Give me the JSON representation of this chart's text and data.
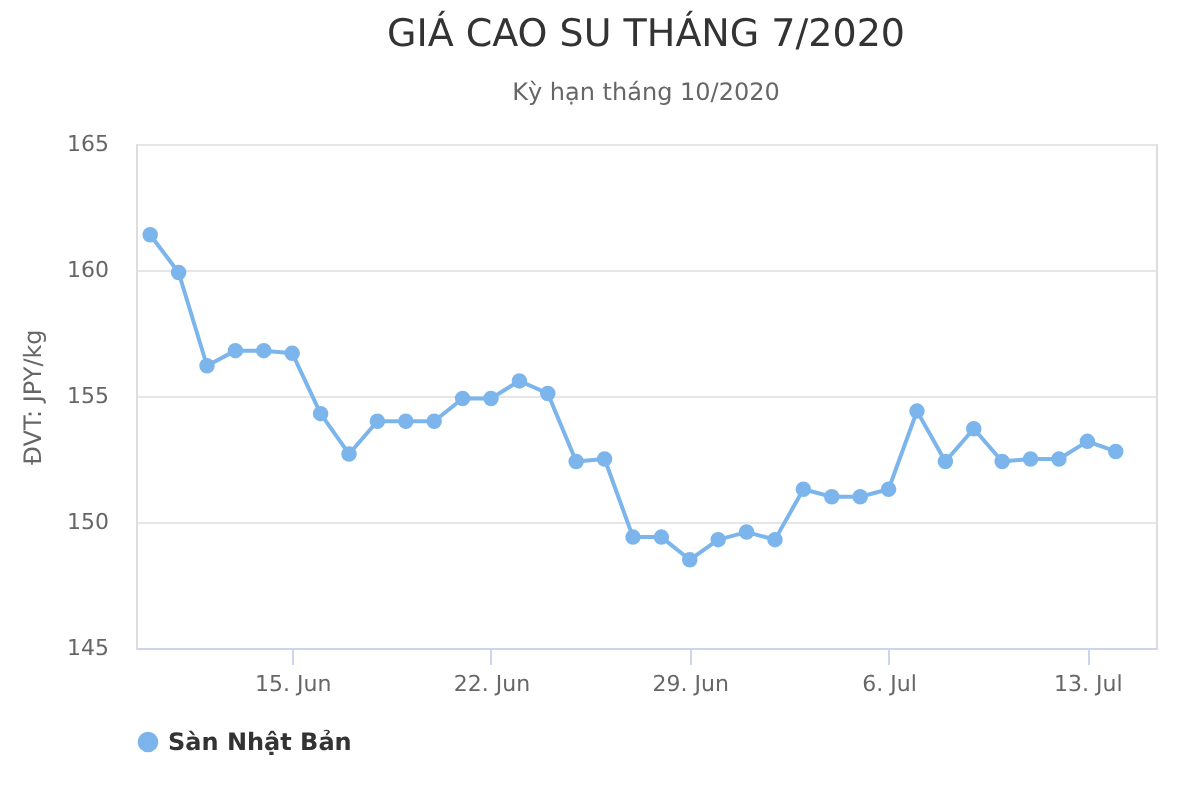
{
  "chart_data": {
    "type": "line",
    "title": "GIÁ CAO SU THÁNG 7/2020",
    "subtitle": "Kỳ hạn tháng 10/2020",
    "ylabel": "ĐVT: JPY/kg",
    "x": [
      "2020-06-10",
      "2020-06-11",
      "2020-06-12",
      "2020-06-13",
      "2020-06-14",
      "2020-06-15",
      "2020-06-16",
      "2020-06-17",
      "2020-06-18",
      "2020-06-19",
      "2020-06-20",
      "2020-06-21",
      "2020-06-22",
      "2020-06-23",
      "2020-06-24",
      "2020-06-25",
      "2020-06-26",
      "2020-06-27",
      "2020-06-28",
      "2020-06-29",
      "2020-06-30",
      "2020-07-01",
      "2020-07-02",
      "2020-07-03",
      "2020-07-04",
      "2020-07-05",
      "2020-07-06",
      "2020-07-07",
      "2020-07-08",
      "2020-07-09",
      "2020-07-10",
      "2020-07-11",
      "2020-07-12",
      "2020-07-13",
      "2020-07-14"
    ],
    "series": [
      {
        "name": "Sàn Nhật Bản",
        "color": "#7cb5ec",
        "values": [
          161.4,
          159.9,
          156.2,
          156.8,
          156.8,
          156.7,
          154.3,
          152.7,
          154.0,
          154.0,
          154.0,
          154.9,
          154.9,
          155.6,
          155.1,
          152.4,
          152.5,
          149.4,
          149.4,
          148.5,
          149.3,
          149.6,
          149.3,
          151.3,
          151.0,
          151.0,
          151.3,
          154.4,
          152.4,
          153.7,
          152.4,
          152.5,
          152.5,
          153.2,
          152.8
        ]
      }
    ],
    "xlim": [
      "2020-06-09T12:00",
      "2020-07-15T10:00"
    ],
    "xticks": [
      {
        "value": "2020-06-15",
        "label": "15. Jun"
      },
      {
        "value": "2020-06-22",
        "label": "22. Jun"
      },
      {
        "value": "2020-06-29",
        "label": "29. Jun"
      },
      {
        "value": "2020-07-06",
        "label": "6. Jul"
      },
      {
        "value": "2020-07-13",
        "label": "13. Jul"
      }
    ],
    "ylim": [
      145,
      165
    ],
    "yticks": [
      145,
      150,
      155,
      160,
      165
    ],
    "grid": "y",
    "legend": "bottom",
    "marker": "circle",
    "line_style": "solid"
  }
}
